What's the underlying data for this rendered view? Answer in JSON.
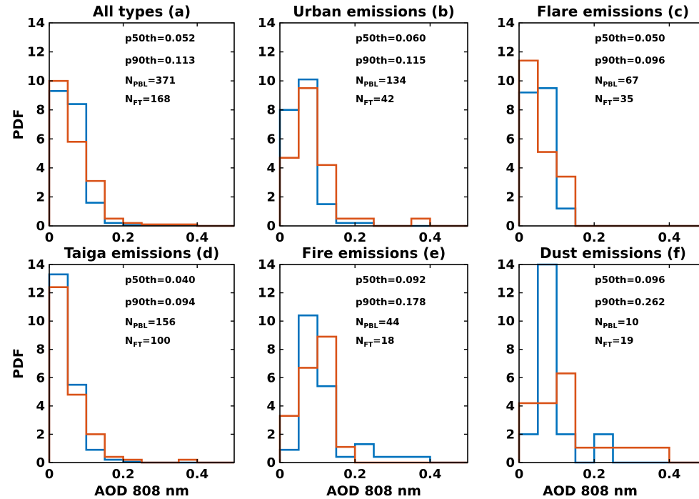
{
  "chart_data": [
    {
      "type": "histogram",
      "title": "All types (a)",
      "xlabel": "",
      "ylabel": "PDF",
      "xlim": [
        0,
        0.5
      ],
      "ylim": [
        0,
        14
      ],
      "xticks": [
        "0",
        "0.2",
        "0.4"
      ],
      "yticks": [
        "0",
        "2",
        "4",
        "6",
        "8",
        "10",
        "12",
        "14"
      ],
      "bin_edges": [
        0,
        0.05,
        0.1,
        0.15,
        0.2,
        0.25,
        0.3,
        0.35,
        0.4,
        0.45,
        0.5
      ],
      "series": [
        {
          "color": "#0072BD",
          "values": [
            9.3,
            8.4,
            1.6,
            0.2,
            0.05,
            0.05,
            0.05,
            0.05,
            0,
            0
          ]
        },
        {
          "color": "#D95319",
          "values": [
            10.0,
            5.8,
            3.1,
            0.5,
            0.2,
            0.1,
            0.1,
            0.1,
            0,
            0
          ]
        }
      ],
      "annotations": {
        "p50": "p50th=0.052",
        "p90": "p90th=0.113",
        "npbl": "371",
        "nft": "168"
      }
    },
    {
      "type": "histogram",
      "title": "Urban emissions (b)",
      "xlabel": "",
      "ylabel": "",
      "xlim": [
        0,
        0.5
      ],
      "ylim": [
        0,
        14
      ],
      "xticks": [
        "0",
        "0.2",
        "0.4"
      ],
      "yticks": [
        "0",
        "2",
        "4",
        "6",
        "8",
        "10",
        "12",
        "14"
      ],
      "bin_edges": [
        0,
        0.05,
        0.1,
        0.15,
        0.2,
        0.25,
        0.3,
        0.35,
        0.4,
        0.45,
        0.5
      ],
      "series": [
        {
          "color": "#0072BD",
          "values": [
            8.0,
            10.1,
            1.5,
            0.2,
            0.2,
            0,
            0,
            0,
            0,
            0
          ]
        },
        {
          "color": "#D95319",
          "values": [
            4.7,
            9.5,
            4.2,
            0.5,
            0.5,
            0,
            0,
            0.5,
            0,
            0
          ]
        }
      ],
      "annotations": {
        "p50": "p50th=0.060",
        "p90": "p90th=0.115",
        "npbl": "134",
        "nft": "42"
      }
    },
    {
      "type": "histogram",
      "title": "Flare emissions (c)",
      "xlabel": "",
      "ylabel": "",
      "xlim": [
        0,
        0.5
      ],
      "ylim": [
        0,
        14
      ],
      "xticks": [
        "0",
        "0.2",
        "0.4"
      ],
      "yticks": [
        "0",
        "2",
        "4",
        "6",
        "8",
        "10",
        "12",
        "14"
      ],
      "bin_edges": [
        0,
        0.05,
        0.1,
        0.15,
        0.2,
        0.25,
        0.3,
        0.35,
        0.4,
        0.45,
        0.5
      ],
      "series": [
        {
          "color": "#0072BD",
          "values": [
            9.2,
            9.5,
            1.2,
            0,
            0,
            0,
            0,
            0,
            0,
            0
          ]
        },
        {
          "color": "#D95319",
          "values": [
            11.4,
            5.1,
            3.4,
            0,
            0,
            0,
            0,
            0,
            0,
            0
          ]
        }
      ],
      "annotations": {
        "p50": "p50th=0.050",
        "p90": "p90th=0.096",
        "npbl": "67",
        "nft": "35"
      }
    },
    {
      "type": "histogram",
      "title": "Taiga emissions (d)",
      "xlabel": "AOD 808 nm",
      "ylabel": "PDF",
      "xlim": [
        0,
        0.5
      ],
      "ylim": [
        0,
        14
      ],
      "xticks": [
        "0",
        "0.2",
        "0.4"
      ],
      "yticks": [
        "0",
        "2",
        "4",
        "6",
        "8",
        "10",
        "12",
        "14"
      ],
      "bin_edges": [
        0,
        0.05,
        0.1,
        0.15,
        0.2,
        0.25,
        0.3,
        0.35,
        0.4,
        0.45,
        0.5
      ],
      "series": [
        {
          "color": "#0072BD",
          "values": [
            13.3,
            5.5,
            0.9,
            0.2,
            0.05,
            0,
            0,
            0,
            0,
            0
          ]
        },
        {
          "color": "#D95319",
          "values": [
            12.4,
            4.8,
            2.0,
            0.4,
            0.2,
            0,
            0,
            0.2,
            0,
            0
          ]
        }
      ],
      "annotations": {
        "p50": "p50th=0.040",
        "p90": "p90th=0.094",
        "npbl": "156",
        "nft": "100"
      }
    },
    {
      "type": "histogram",
      "title": "Fire emissions (e)",
      "xlabel": "AOD 808 nm",
      "ylabel": "",
      "xlim": [
        0,
        0.5
      ],
      "ylim": [
        0,
        14
      ],
      "xticks": [
        "0",
        "0.2",
        "0.4"
      ],
      "yticks": [
        "0",
        "2",
        "4",
        "6",
        "8",
        "10",
        "12",
        "14"
      ],
      "bin_edges": [
        0,
        0.05,
        0.1,
        0.15,
        0.2,
        0.25,
        0.3,
        0.35,
        0.4,
        0.45,
        0.5
      ],
      "series": [
        {
          "color": "#0072BD",
          "values": [
            0.9,
            10.4,
            5.4,
            0.4,
            1.3,
            0.4,
            0.4,
            0.4,
            0,
            0
          ]
        },
        {
          "color": "#D95319",
          "values": [
            3.3,
            6.7,
            8.9,
            1.1,
            0,
            0,
            0,
            0,
            0,
            0
          ]
        }
      ],
      "annotations": {
        "p50": "p50th=0.092",
        "p90": "p90th=0.178",
        "npbl": "44",
        "nft": "18"
      }
    },
    {
      "type": "histogram",
      "title": "Dust emissions (f)",
      "xlabel": "AOD 808 nm",
      "ylabel": "",
      "xlim": [
        0,
        0.5
      ],
      "ylim": [
        0,
        14
      ],
      "xticks": [
        "0",
        "0.2",
        "0.4"
      ],
      "yticks": [
        "0",
        "2",
        "4",
        "6",
        "8",
        "10",
        "12",
        "14"
      ],
      "bin_edges": [
        0,
        0.05,
        0.1,
        0.15,
        0.2,
        0.25,
        0.3,
        0.35,
        0.4,
        0.45,
        0.5
      ],
      "series": [
        {
          "color": "#0072BD",
          "values": [
            2.0,
            14.0,
            2.0,
            0,
            2.0,
            0,
            0,
            0,
            0,
            0
          ]
        },
        {
          "color": "#D95319",
          "values": [
            4.2,
            4.2,
            6.3,
            1.05,
            1.05,
            1.05,
            1.05,
            1.05,
            0,
            0
          ]
        }
      ],
      "annotations": {
        "p50": "p50th=0.096",
        "p90": "p90th=0.262",
        "npbl": "10",
        "nft": "19"
      }
    }
  ],
  "labels": {
    "npbl_prefix": "N",
    "npbl_sub": "PBL",
    "nft_prefix": "N",
    "nft_sub": "FT"
  }
}
